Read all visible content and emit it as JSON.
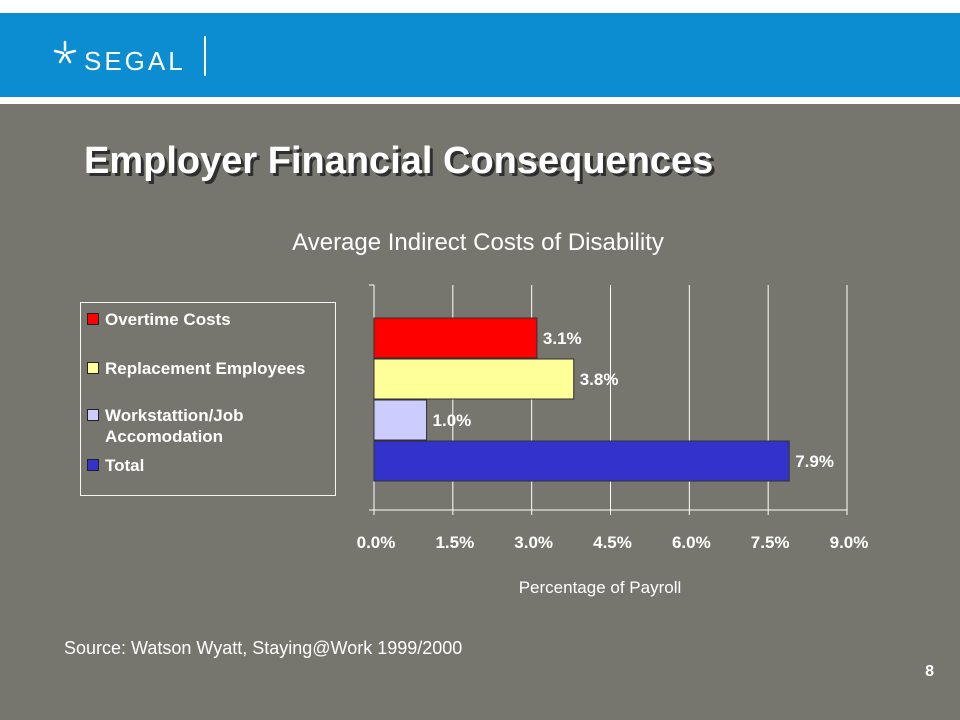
{
  "header": {
    "logo_text": "SEGAL"
  },
  "slide": {
    "title": "Employer Financial Consequences",
    "source": "Source: Watson Wyatt, Staying@Work 1999/2000",
    "page_number": "8"
  },
  "colors": {
    "banner": "#0c8dd2",
    "background": "#76766f"
  },
  "chart_data": {
    "type": "bar",
    "orientation": "horizontal",
    "title": "Average Indirect Costs of Disability",
    "xlabel": "Percentage of Payroll",
    "ylabel": "",
    "xlim": [
      0,
      9.0
    ],
    "xticks": [
      "0.0%",
      "1.5%",
      "3.0%",
      "4.5%",
      "6.0%",
      "7.5%",
      "9.0%"
    ],
    "grid": true,
    "legend_position": "left",
    "series": [
      {
        "name": "Overtime Costs",
        "value": 3.1,
        "label": "3.1%",
        "color": "#ff0000"
      },
      {
        "name": "Replacement Employees",
        "value": 3.8,
        "label": "3.8%",
        "color": "#ffff99"
      },
      {
        "name": "Workstattion/Job Accomodation",
        "value": 1.0,
        "label": "1.0%",
        "color": "#ccccff"
      },
      {
        "name": "Total",
        "value": 7.9,
        "label": "7.9%",
        "color": "#3333cc"
      }
    ]
  }
}
